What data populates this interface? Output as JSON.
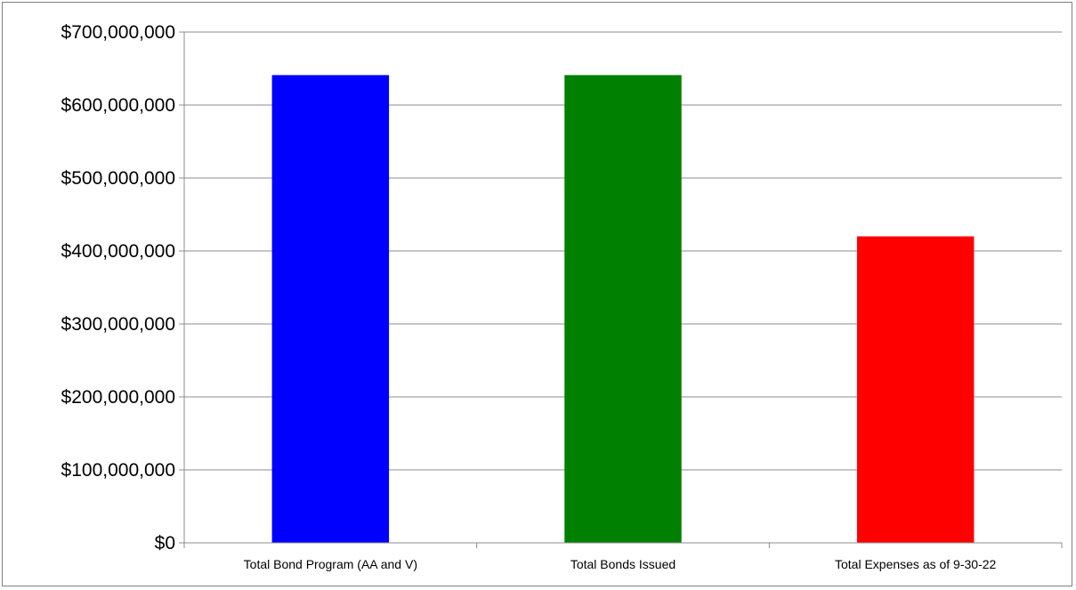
{
  "chart_data": {
    "type": "bar",
    "title": "",
    "xlabel": "",
    "ylabel": "",
    "categories": [
      "Total Bond Program (AA and V)",
      "Total Bonds Issued",
      "Total Expenses as of 9-30-22"
    ],
    "values": [
      641000000,
      641000000,
      420000000
    ],
    "bar_colors": [
      "#0000ff",
      "#008000",
      "#ff0000"
    ],
    "ylim": [
      0,
      700000000
    ],
    "y_ticks": [
      0,
      100000000,
      200000000,
      300000000,
      400000000,
      500000000,
      600000000,
      700000000
    ],
    "y_tick_labels": [
      "$0",
      "$100,000,000",
      "$200,000,000",
      "$300,000,000",
      "$400,000,000",
      "$500,000,000",
      "$600,000,000",
      "$700,000,000"
    ],
    "grid": true,
    "legend": "none"
  }
}
